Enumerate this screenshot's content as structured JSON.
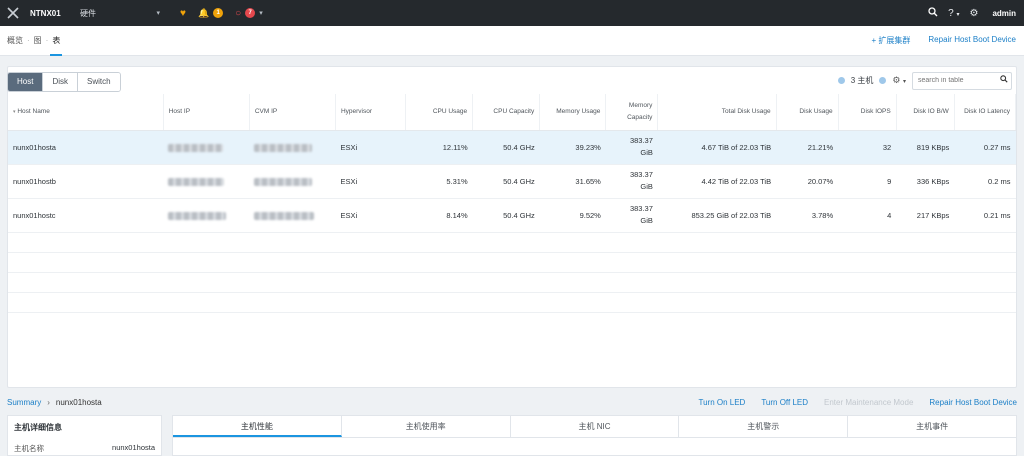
{
  "topbar": {
    "cluster_name": "NTNX01",
    "menu": "硬件",
    "alert_count": "1",
    "event_count": "7",
    "user": "admin"
  },
  "subnav": {
    "breadcrumbs": [
      "概览",
      "图",
      "表"
    ],
    "actions": [
      "+ 扩展集群",
      "Repair Host Boot Device"
    ]
  },
  "toolbar": {
    "segments": [
      "Host",
      "Disk",
      "Switch"
    ],
    "host_count": "3 主机",
    "search_placeholder": "search in table"
  },
  "table": {
    "headers": [
      "Host Name",
      "Host IP",
      "CVM IP",
      "Hypervisor",
      "CPU Usage",
      "CPU Capacity",
      "Memory Usage",
      "Memory Capacity",
      "Total Disk Usage",
      "Disk Usage",
      "Disk IOPS",
      "Disk IO B/W",
      "Disk IO Latency"
    ],
    "rows": [
      {
        "name": "nunx01hosta",
        "hypervisor": "ESXi",
        "cpu_usage": "12.11%",
        "cpu_capacity": "50.4 GHz",
        "mem_usage": "39.23%",
        "mem_capacity_1": "383.37",
        "mem_capacity_2": "GiB",
        "total_disk": "4.67 TiB of 22.03 TiB",
        "disk_usage": "21.21%",
        "iops": "32",
        "bw": "819 KBps",
        "latency": "0.27 ms"
      },
      {
        "name": "nunx01hostb",
        "hypervisor": "ESXi",
        "cpu_usage": "5.31%",
        "cpu_capacity": "50.4 GHz",
        "mem_usage": "31.65%",
        "mem_capacity_1": "383.37",
        "mem_capacity_2": "GiB",
        "total_disk": "4.42 TiB of 22.03 TiB",
        "disk_usage": "20.07%",
        "iops": "9",
        "bw": "336 KBps",
        "latency": "0.2 ms"
      },
      {
        "name": "nunx01hostc",
        "hypervisor": "ESXi",
        "cpu_usage": "8.14%",
        "cpu_capacity": "50.4 GHz",
        "mem_usage": "9.52%",
        "mem_capacity_1": "383.37",
        "mem_capacity_2": "GiB",
        "total_disk": "853.25 GiB of 22.03 TiB",
        "disk_usage": "3.78%",
        "iops": "4",
        "bw": "217 KBps",
        "latency": "0.21 ms"
      }
    ]
  },
  "detail": {
    "summary": "Summary",
    "current": "nunx01hosta",
    "actions": [
      "Turn On LED",
      "Turn Off LED",
      "Enter Maintenance Mode",
      "Repair Host Boot Device"
    ],
    "panel_title": "主机详细信息",
    "host_name_label": "主机名称",
    "host_name_value": "nunx01hosta",
    "tabs": [
      "主机性能",
      "主机使用率",
      "主机 NIC",
      "主机警示",
      "主机事件"
    ]
  },
  "colors": {
    "topbar": "#25292d",
    "accent": "#1b95e0",
    "selected_row": "#e7f3fb",
    "alert_badge": "#f0a30a",
    "event_badge": "#e5484d"
  }
}
